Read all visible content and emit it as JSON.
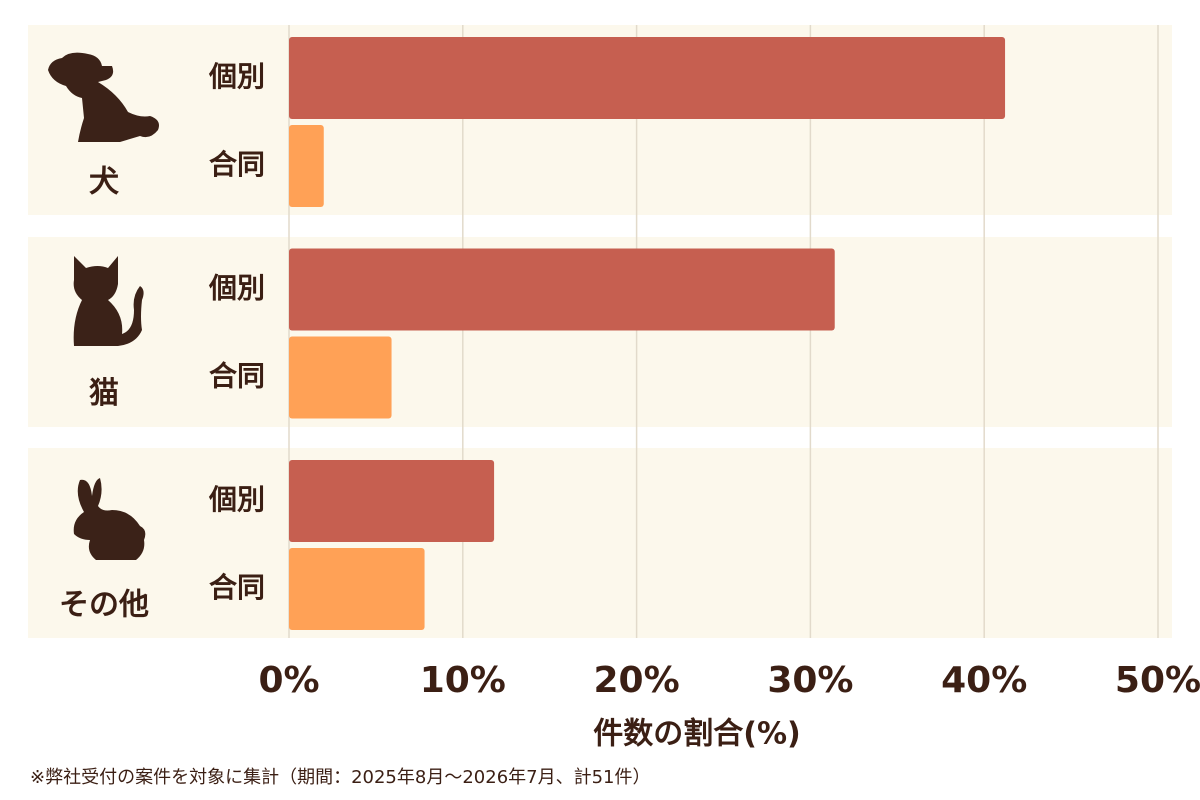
{
  "chart_data": {
    "type": "bar",
    "orientation": "horizontal",
    "categories": [
      "犬",
      "猫",
      "その他"
    ],
    "series": [
      {
        "name": "個別",
        "color": "#c65f50",
        "values": [
          41.2,
          31.4,
          11.8
        ]
      },
      {
        "name": "合同",
        "color": "#ffa156",
        "values": [
          2.0,
          5.9,
          7.8
        ]
      }
    ],
    "xlim": [
      0,
      50
    ],
    "xticks": [
      {
        "value": 0,
        "label": "0%"
      },
      {
        "value": 10,
        "label": "10%"
      },
      {
        "value": 20,
        "label": "20%"
      },
      {
        "value": 30,
        "label": "30%"
      },
      {
        "value": 40,
        "label": "40%"
      },
      {
        "value": 50,
        "label": "50%"
      }
    ],
    "grid": true,
    "xlabel": "件数の割合(%)",
    "note": "※弊社受付の案件を対象に集計（期間：2025年8月～2026年7月、計51件）"
  }
}
